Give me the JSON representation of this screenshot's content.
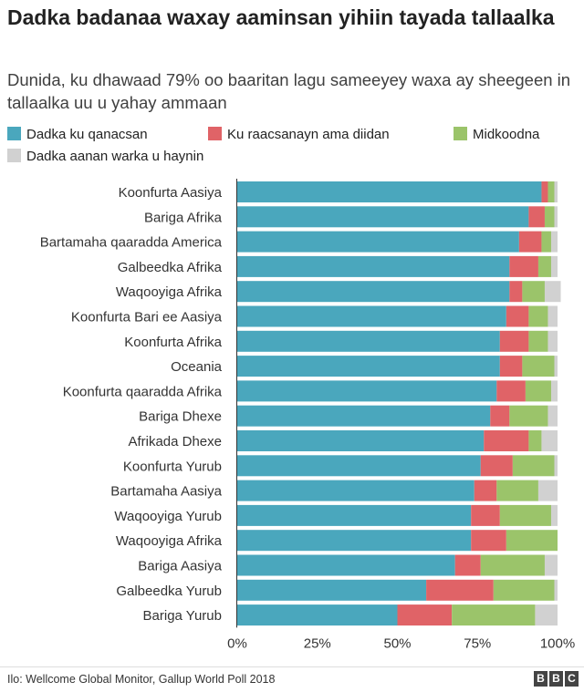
{
  "chart_data": {
    "type": "bar",
    "orientation": "horizontal",
    "stacked": true,
    "title": "Dadka badanaa waxay aaminsan yihiin tayada tallaalka",
    "subtitle": "Dunida, ku dhawaad 79% oo baaritan lagu sameeyey waxa ay sheegeen in tallaalka uu u yahay ammaan",
    "categories": [
      "Koonfurta Aasiya",
      "Bariga Afrika",
      "Bartamaha qaaradda America",
      "Galbeedka Afrika",
      "Waqooyiga Afrika",
      "Koonfurta Bari ee Aasiya",
      "Koonfurta Afrika",
      "Oceania",
      "Koonfurta qaaradda Afrika",
      "Bariga Dhexe",
      "Afrikada Dhexe",
      "Koonfurta Yurub",
      "Bartamaha Aasiya",
      "Waqooyiga Yurub",
      "Waqooyiga Afrika",
      "Bariga Aasiya",
      "Galbeedka Yurub",
      "Bariga Yurub"
    ],
    "series": [
      {
        "name": "Dadka ku qanacsan",
        "color": "#4aa7bd",
        "values": [
          95,
          91,
          88,
          85,
          85,
          84,
          82,
          82,
          81,
          79,
          77,
          76,
          74,
          73,
          73,
          68,
          59,
          50
        ]
      },
      {
        "name": "Ku raacsanayn ama diidan",
        "color": "#e06367",
        "values": [
          2,
          5,
          7,
          9,
          4,
          7,
          9,
          7,
          9,
          6,
          14,
          10,
          7,
          9,
          11,
          8,
          21,
          17
        ]
      },
      {
        "name": "Midkoodna",
        "color": "#9bc46a",
        "values": [
          2,
          3,
          3,
          4,
          7,
          6,
          6,
          10,
          8,
          12,
          4,
          13,
          13,
          16,
          16,
          20,
          19,
          26
        ]
      },
      {
        "name": "Dadka aanan warka u haynin",
        "color": "#d1d1d1",
        "values": [
          1,
          1,
          2,
          2,
          5,
          3,
          3,
          1,
          2,
          3,
          5,
          1,
          6,
          2,
          0,
          4,
          1,
          7
        ]
      }
    ],
    "xlim": [
      0,
      100
    ],
    "xticks": [
      "0%",
      "25%",
      "50%",
      "75%",
      "100%"
    ],
    "legend_position": "top",
    "grid": false
  },
  "footer": {
    "source": "Ilo: Wellcome Global Monitor, Gallup World Poll 2018",
    "logo": [
      "B",
      "B",
      "C"
    ]
  }
}
